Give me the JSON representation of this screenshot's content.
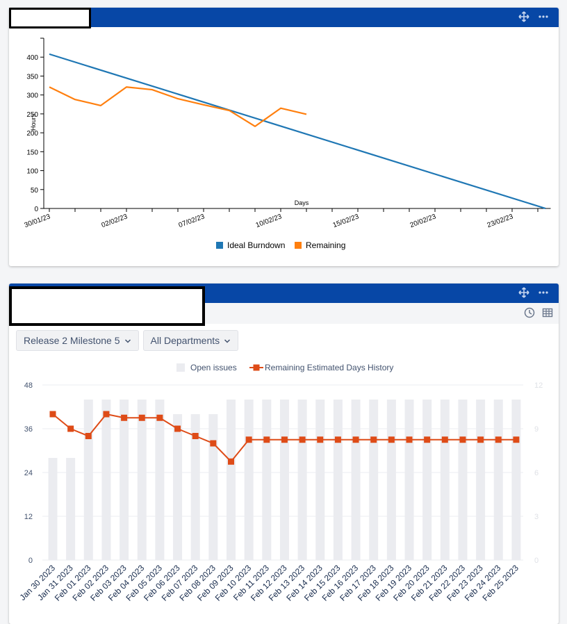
{
  "panel1": {
    "chart_data": {
      "type": "line",
      "xlabel": "Days",
      "ylabel": "Hours",
      "ylim": [
        0,
        450
      ],
      "yticks": [
        0,
        50,
        100,
        150,
        200,
        250,
        300,
        350,
        400
      ],
      "x_tick_labels": [
        "30/01/23",
        "02/02/23",
        "07/02/23",
        "10/02/23",
        "15/02/23",
        "20/02/23",
        "23/02/23"
      ],
      "x_tick_index": [
        0,
        3,
        6,
        9,
        12,
        15,
        18
      ],
      "x_count": 20,
      "legend_position": "bottom",
      "series": [
        {
          "name": "Ideal Burndown",
          "color": "#1f77b4",
          "x": [
            0,
            19.3
          ],
          "values": [
            408,
            0
          ]
        },
        {
          "name": "Remaining",
          "color": "#ff7f0e",
          "x": [
            0,
            1,
            2,
            3,
            4,
            5,
            6,
            7,
            8,
            9,
            10
          ],
          "values": [
            321,
            288,
            272,
            321,
            314,
            290,
            274,
            259,
            217,
            265,
            249
          ]
        }
      ]
    }
  },
  "panel2": {
    "filters": [
      {
        "label": "Release 2 Milestone 5"
      },
      {
        "label": "All Departments"
      }
    ],
    "chart_data": {
      "type": "bar",
      "legend_position": "top",
      "categories": [
        "Jan 30 2023",
        "Jan 31 2023",
        "Feb 01 2023",
        "Feb 02 2023",
        "Feb 03 2023",
        "Feb 04 2023",
        "Feb 05 2023",
        "Feb 06 2023",
        "Feb 07 2023",
        "Feb 08 2023",
        "Feb 09 2023",
        "Feb 10 2023",
        "Feb 11 2023",
        "Feb 12 2023",
        "Feb 13 2023",
        "Feb 14 2023",
        "Feb 15 2023",
        "Feb 16 2023",
        "Feb 17 2023",
        "Feb 18 2023",
        "Feb 19 2023",
        "Feb 20 2023",
        "Feb 21 2023",
        "Feb 22 2023",
        "Feb 23 2023",
        "Feb 24 2023",
        "Feb 25 2023"
      ],
      "y_left": {
        "ylim": [
          0,
          48
        ],
        "ticks": [
          0,
          12,
          24,
          36,
          48
        ]
      },
      "y_right": {
        "ylim": [
          0,
          12
        ],
        "ticks": [
          0,
          3,
          6,
          9,
          12
        ]
      },
      "series": [
        {
          "name": "Open issues",
          "type": "bar",
          "axis": "left",
          "color": "#ebecf0",
          "values": [
            28,
            28,
            44,
            44,
            44,
            44,
            44,
            40,
            40,
            40,
            44,
            44,
            44,
            44,
            44,
            44,
            44,
            44,
            44,
            44,
            44,
            44,
            44,
            44,
            44,
            44,
            44
          ]
        },
        {
          "name": "Remaining Estimated Days History",
          "type": "line",
          "axis": "right",
          "color": "#de4b17",
          "values": [
            10,
            9,
            8.5,
            10,
            9.75,
            9.75,
            9.75,
            9,
            8.5,
            8,
            6.75,
            8.25,
            8.25,
            8.25,
            8.25,
            8.25,
            8.25,
            8.25,
            8.25,
            8.25,
            8.25,
            8.25,
            8.25,
            8.25,
            8.25,
            8.25,
            8.25
          ]
        }
      ]
    }
  }
}
